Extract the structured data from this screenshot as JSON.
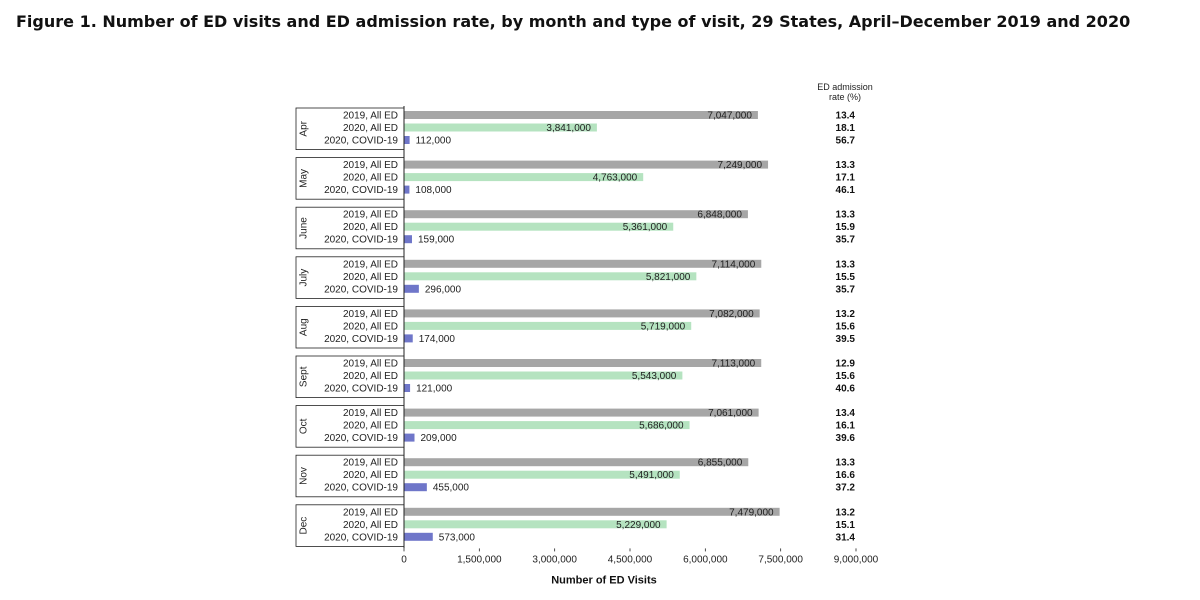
{
  "title": "Figure 1. Number of ED visits and ED admission rate, by month and type of visit, 29 States, April–December 2019 and 2020",
  "chart_data": {
    "type": "bar",
    "orientation": "horizontal",
    "xlabel": "Number of ED Visits",
    "xlim": [
      0,
      9000000
    ],
    "xticks": [
      0,
      1500000,
      3000000,
      4500000,
      6000000,
      7500000,
      9000000
    ],
    "xtick_labels": [
      "0",
      "1,500,000",
      "3,000,000",
      "4,500,000",
      "6,000,000",
      "7,500,000",
      "9,000,000"
    ],
    "rate_header": [
      "ED admission",
      "rate (%)"
    ],
    "series_colors": {
      "2019, All ED": "#a6a6a6",
      "2020, All ED": "#b5e3c0",
      "2020, COVID-19": "#6f76c9"
    },
    "groups": [
      {
        "month": "Apr",
        "bars": [
          {
            "label": "2019, All ED",
            "value": 7047000,
            "display": "7,047,000",
            "rate": "13.4"
          },
          {
            "label": "2020, All ED",
            "value": 3841000,
            "display": "3,841,000",
            "rate": "18.1"
          },
          {
            "label": "2020, COVID-19",
            "value": 112000,
            "display": "112,000",
            "rate": "56.7"
          }
        ]
      },
      {
        "month": "May",
        "bars": [
          {
            "label": "2019, All ED",
            "value": 7249000,
            "display": "7,249,000",
            "rate": "13.3"
          },
          {
            "label": "2020, All ED",
            "value": 4763000,
            "display": "4,763,000",
            "rate": "17.1"
          },
          {
            "label": "2020, COVID-19",
            "value": 108000,
            "display": "108,000",
            "rate": "46.1"
          }
        ]
      },
      {
        "month": "June",
        "bars": [
          {
            "label": "2019, All ED",
            "value": 6848000,
            "display": "6,848,000",
            "rate": "13.3"
          },
          {
            "label": "2020, All ED",
            "value": 5361000,
            "display": "5,361,000",
            "rate": "15.9"
          },
          {
            "label": "2020, COVID-19",
            "value": 159000,
            "display": "159,000",
            "rate": "35.7"
          }
        ]
      },
      {
        "month": "July",
        "bars": [
          {
            "label": "2019, All ED",
            "value": 7114000,
            "display": "7,114,000",
            "rate": "13.3"
          },
          {
            "label": "2020, All ED",
            "value": 5821000,
            "display": "5,821,000",
            "rate": "15.5"
          },
          {
            "label": "2020, COVID-19",
            "value": 296000,
            "display": "296,000",
            "rate": "35.7"
          }
        ]
      },
      {
        "month": "Aug",
        "bars": [
          {
            "label": "2019, All ED",
            "value": 7082000,
            "display": "7,082,000",
            "rate": "13.2"
          },
          {
            "label": "2020, All ED",
            "value": 5719000,
            "display": "5,719,000",
            "rate": "15.6"
          },
          {
            "label": "2020, COVID-19",
            "value": 174000,
            "display": "174,000",
            "rate": "39.5"
          }
        ]
      },
      {
        "month": "Sept",
        "bars": [
          {
            "label": "2019, All ED",
            "value": 7113000,
            "display": "7,113,000",
            "rate": "12.9"
          },
          {
            "label": "2020, All ED",
            "value": 5543000,
            "display": "5,543,000",
            "rate": "15.6"
          },
          {
            "label": "2020, COVID-19",
            "value": 121000,
            "display": "121,000",
            "rate": "40.6"
          }
        ]
      },
      {
        "month": "Oct",
        "bars": [
          {
            "label": "2019, All ED",
            "value": 7061000,
            "display": "7,061,000",
            "rate": "13.4"
          },
          {
            "label": "2020, All ED",
            "value": 5686000,
            "display": "5,686,000",
            "rate": "16.1"
          },
          {
            "label": "2020, COVID-19",
            "value": 209000,
            "display": "209,000",
            "rate": "39.6"
          }
        ]
      },
      {
        "month": "Nov",
        "bars": [
          {
            "label": "2019, All ED",
            "value": 6855000,
            "display": "6,855,000",
            "rate": "13.3"
          },
          {
            "label": "2020, All ED",
            "value": 5491000,
            "display": "5,491,000",
            "rate": "16.6"
          },
          {
            "label": "2020, COVID-19",
            "value": 455000,
            "display": "455,000",
            "rate": "37.2"
          }
        ]
      },
      {
        "month": "Dec",
        "bars": [
          {
            "label": "2019, All ED",
            "value": 7479000,
            "display": "7,479,000",
            "rate": "13.2"
          },
          {
            "label": "2020, All ED",
            "value": 5229000,
            "display": "5,229,000",
            "rate": "15.1"
          },
          {
            "label": "2020, COVID-19",
            "value": 573000,
            "display": "573,000",
            "rate": "31.4"
          }
        ]
      }
    ]
  }
}
